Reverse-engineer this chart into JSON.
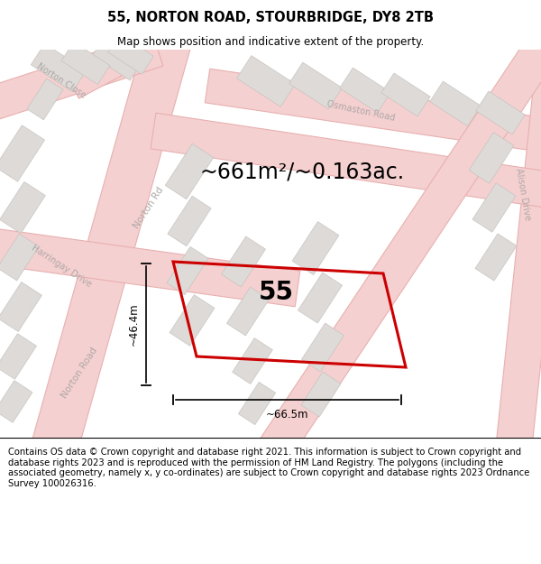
{
  "title": "55, NORTON ROAD, STOURBRIDGE, DY8 2TB",
  "subtitle": "Map shows position and indicative extent of the property.",
  "footer": "Contains OS data © Crown copyright and database right 2021. This information is subject to Crown copyright and database rights 2023 and is reproduced with the permission of HM Land Registry. The polygons (including the associated geometry, namely x, y co-ordinates) are subject to Crown copyright and database rights 2023 Ordnance Survey 100026316.",
  "area_label": "~661m²/~0.163ac.",
  "property_number": "55",
  "dim_width": "~66.5m",
  "dim_height": "~46.4m",
  "map_bg": "#f2f0ee",
  "road_fill": "#f5d0d0",
  "road_edge": "#e8b0b0",
  "block_fill": "#dddad7",
  "block_edge": "#c8c4c0",
  "property_color": "#cc0000",
  "road_label_color": "#b0a8a8",
  "title_fontsize": 10.5,
  "subtitle_fontsize": 8.5,
  "footer_fontsize": 7.2,
  "label_fontsize": 8.0,
  "area_fontsize": 17,
  "num_fontsize": 20,
  "dim_fontsize": 8.5
}
